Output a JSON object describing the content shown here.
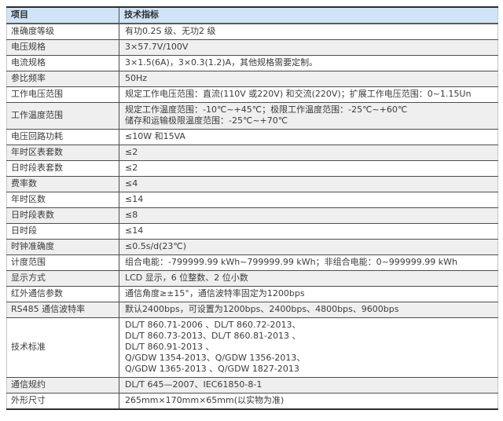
{
  "meta": {
    "description": "Electric energy meter technical specification table",
    "colors": {
      "header_bg": "#cfe4f7",
      "stripe_bg": "#efefef",
      "row_bg": "#ffffff",
      "border_dark": "#4d4d4d",
      "text": "#3b3b3b"
    }
  },
  "table": {
    "headers": [
      "项目",
      "技术指标"
    ],
    "rows": [
      {
        "label": "准确度等级",
        "value": "有功0.2S 级、无功2 级"
      },
      {
        "label": "电压规格",
        "value": "3×57.7V/100V"
      },
      {
        "label": "电流规格",
        "value": "3×1.5(6A)，3×0.3(1.2)A，其他规格需要定制。"
      },
      {
        "label": "参比频率",
        "value": "50Hz"
      },
      {
        "label": "工作电压范围",
        "value": "规定工作电压范围：直流(110V 或220V) 和交流(220V)；扩展工作电压范围：0~1.15Un"
      },
      {
        "label": "工作温度范围",
        "value": "规定工作温度范围：-10℃~+45℃；极限工作温度范围：-25℃~+60℃\n储存和运输极限温度范围：-25℃~+70℃"
      },
      {
        "label": "电压回路功耗",
        "value": "≤10W 和15VA"
      },
      {
        "label": "年时区表套数",
        "value": "≤2"
      },
      {
        "label": "日时段表套数",
        "value": "≤2"
      },
      {
        "label": "费率数",
        "value": "≤4"
      },
      {
        "label": "年时区数",
        "value": "≤14"
      },
      {
        "label": "日时段表数",
        "value": "≤8"
      },
      {
        "label": "日时段",
        "value": "≤14"
      },
      {
        "label": "时钟准确度",
        "value": "≤0.5s/d(23℃)"
      },
      {
        "label": "计度范围",
        "value": "组合电能：-799999.99 kWh~799999.99 kWh；非组合电能：0~999999.99 kWh"
      },
      {
        "label": "显示方式",
        "value": "LCD 显示，6 位整数、2 位小数"
      },
      {
        "label": "红外通信参数",
        "value": "通信角度≥±15°，通信波特率固定为1200bps"
      },
      {
        "label": "RS485 通信波特率",
        "value": "默认2400bps，可设置为1200bps、2400bps、4800bps、9600bps"
      },
      {
        "label": "技术标准",
        "value": "DL/T 860.71-2006 、DL/T 860.72-2013、\nDL/T 860.73-2013、DL/T 860.81-2013 、\nDL/T 860.91-2013 、\nQ/GDW 1354-2013、Q/GDW 1356-2013、\nQ/GDW 1365-2013 、Q/GDW 1827-2013"
      },
      {
        "label": "通信规约",
        "value": "DL/T 645—2007、IEC61850-8-1"
      },
      {
        "label": "外形尺寸",
        "value": "265mm×170mm×65mm(以实物为准)"
      }
    ]
  }
}
